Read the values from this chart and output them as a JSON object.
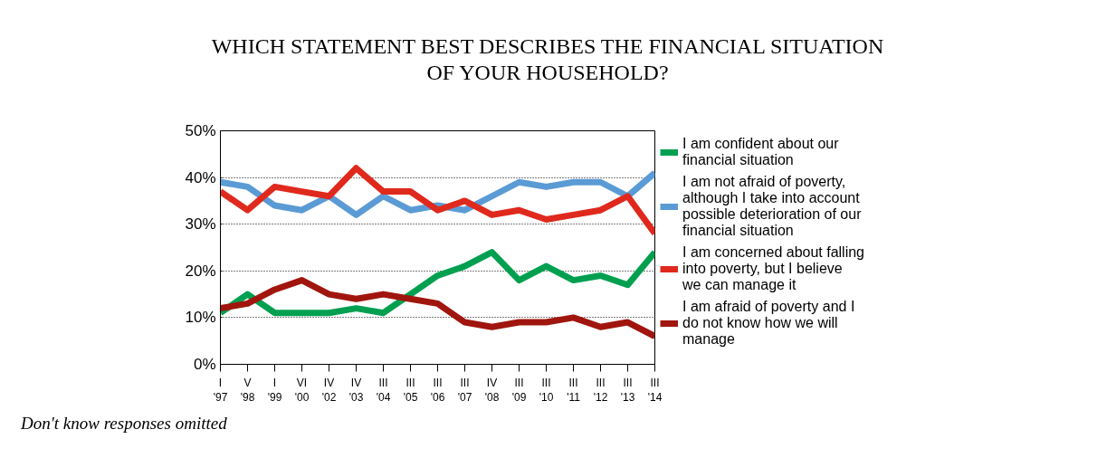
{
  "chart_data": {
    "type": "line",
    "title": "WHICH STATEMENT BEST DESCRIBES THE FINANCIAL SITUATION\nOF YOUR HOUSEHOLD?",
    "categories": [
      "I\n'97",
      "V\n'98",
      "I\n'99",
      "VI\n'00",
      "IV\n'02",
      "IV\n'03",
      "III\n'04",
      "III\n'05",
      "III\n'06",
      "III\n'07",
      "IV\n'08",
      "III\n'09",
      "III\n'10",
      "III\n'11",
      "III\n'12",
      "III\n'13",
      "III\n'14"
    ],
    "series": [
      {
        "name": "I am confident about our financial situation",
        "color": "#00a050",
        "values": [
          11,
          15,
          11,
          11,
          11,
          12,
          11,
          15,
          19,
          21,
          24,
          18,
          21,
          18,
          19,
          17,
          24
        ]
      },
      {
        "name": "I am not afraid of poverty, although I take into account possible deterioration of our financial situation",
        "color": "#5b9bd5",
        "values": [
          39,
          38,
          34,
          33,
          36,
          32,
          36,
          33,
          34,
          33,
          36,
          39,
          38,
          39,
          39,
          36,
          41
        ]
      },
      {
        "name": "I am concerned about falling into poverty, but I believe we can manage it",
        "color": "#e0291d",
        "values": [
          37,
          33,
          38,
          37,
          36,
          42,
          37,
          37,
          33,
          35,
          32,
          33,
          31,
          32,
          33,
          36,
          28
        ]
      },
      {
        "name": "I am afraid of poverty and I do not know how we will manage",
        "color": "#a0160e",
        "values": [
          12,
          13,
          16,
          18,
          15,
          14,
          15,
          14,
          13,
          9,
          8,
          9,
          9,
          10,
          8,
          9,
          6
        ]
      }
    ],
    "ylim": [
      0,
      50
    ],
    "yticks": [
      {
        "value": 0,
        "label": "0%"
      },
      {
        "value": 10,
        "label": "10%"
      },
      {
        "value": 20,
        "label": "20%"
      },
      {
        "value": 30,
        "label": "30%"
      },
      {
        "value": 40,
        "label": "40%"
      },
      {
        "value": 50,
        "label": "50%"
      }
    ],
    "grid": "y",
    "legend": "right",
    "marker": "none",
    "line_style": "solid",
    "annotations": [
      "Don't know responses omitted"
    ]
  }
}
